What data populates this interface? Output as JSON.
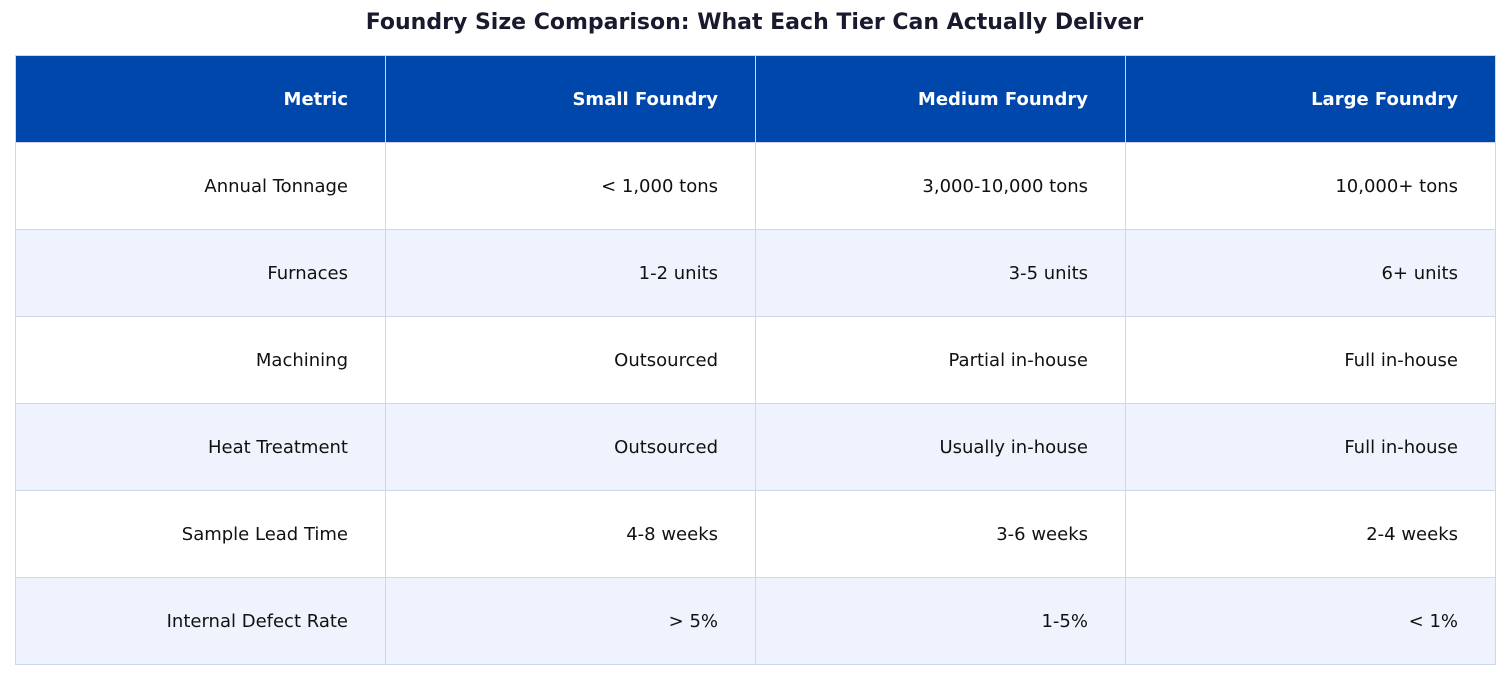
{
  "chart_data": {
    "type": "table",
    "title": "Foundry Size Comparison: What Each Tier Can Actually Deliver",
    "columns": [
      "Metric",
      "Small Foundry",
      "Medium Foundry",
      "Large Foundry"
    ],
    "rows": [
      [
        "Annual Tonnage",
        "< 1,000 tons",
        "3,000-10,000 tons",
        "10,000+ tons"
      ],
      [
        "Furnaces",
        "1-2 units",
        "3-5 units",
        "6+ units"
      ],
      [
        "Machining",
        "Outsourced",
        "Partial in-house",
        "Full in-house"
      ],
      [
        "Heat Treatment",
        "Outsourced",
        "Usually in-house",
        "Full in-house"
      ],
      [
        "Sample Lead Time",
        "4-8 weeks",
        "3-6 weeks",
        "2-4 weeks"
      ],
      [
        "Internal Defect Rate",
        "> 5%",
        "1-5%",
        "< 1%"
      ]
    ]
  },
  "colors": {
    "header_bg": "#0047ab",
    "header_text": "#ffffff",
    "row_alt_bg": "#eef3fd",
    "row_bg": "#ffffff",
    "grid": "#cfd8ea",
    "title": "#1a1a2e"
  }
}
